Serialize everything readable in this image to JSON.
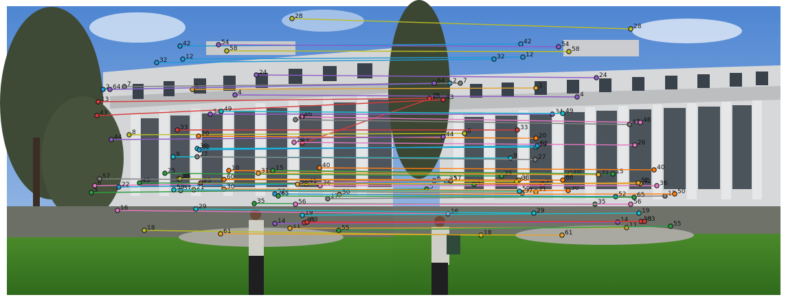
{
  "figure": {
    "panels": [
      {
        "name": "left-photo",
        "description_colors": {
          "sky": "#5f93d6",
          "building": "#cfd0d2",
          "lawn": "#3f7a24"
        }
      },
      {
        "name": "right-photo",
        "description_colors": {
          "sky": "#5f93d6",
          "building": "#cfd0d2",
          "lawn": "#3f7a24"
        }
      }
    ],
    "match_labels": [
      "1",
      "2",
      "3",
      "4",
      "5",
      "6",
      "7",
      "8",
      "9",
      "10",
      "11",
      "12",
      "13",
      "14",
      "15",
      "16",
      "17",
      "18",
      "19",
      "20",
      "21",
      "22",
      "23",
      "24",
      "25",
      "26",
      "27",
      "28",
      "29",
      "30",
      "31",
      "32",
      "33",
      "34",
      "35",
      "36",
      "37",
      "38",
      "39",
      "40",
      "41",
      "42",
      "43",
      "44",
      "45",
      "46",
      "47",
      "48",
      "49",
      "50",
      "51",
      "52",
      "53",
      "54",
      "55",
      "56",
      "57",
      "58",
      "59",
      "60",
      "61",
      "62",
      "63",
      "64",
      "65"
    ],
    "match_colors": [
      "#e6a32c",
      "#1f9ad6",
      "#d63a3a",
      "#8e5bc7",
      "#2c9e3f",
      "#e377c2",
      "#7f7f7f",
      "#bcbd22",
      "#17becf",
      "#ff7f0e"
    ]
  }
}
